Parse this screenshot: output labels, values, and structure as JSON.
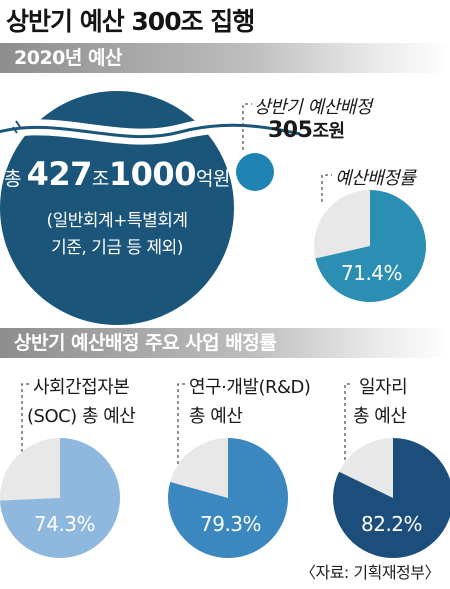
{
  "title": "상반기 예산 300조 집행",
  "section1": {
    "header": "2020년 예산",
    "total": {
      "prefix": "총 ",
      "amount1": "427",
      "unit1": "조",
      "amount2": "1000",
      "unit2": "억원",
      "note_line1": "(일반회계+특별회계",
      "note_line2": "기준, 기금 등 제외)"
    },
    "allocated": {
      "label": "상반기 예산배정",
      "amount": "305",
      "unit": "조원"
    },
    "rate_label": "예산배정률",
    "rate_value": "71.4%"
  },
  "section2": {
    "header": "상반기 예산배정 주요 사업 배정률",
    "pies": [
      {
        "label_line1": "사회간접자본",
        "label_line2": "(SOC) 총 예산",
        "value": "74.3%"
      },
      {
        "label_line1": "연구·개발(R&D)",
        "label_line2": "총 예산",
        "value": "79.3%"
      },
      {
        "label_line1": "일자리",
        "label_line2": "총 예산",
        "value": "82.2%"
      }
    ]
  },
  "source": "〈자료: 기획재정부〉",
  "colors": {
    "big_circle": "#1b567a",
    "small_circle": "#1f84b3",
    "rate_pie": "#2a8fb3",
    "pie_soc": "#8eb8dd",
    "pie_rd": "#3b87bf",
    "pie_jobs": "#1c4e7c",
    "pie_rest": "#e8e8e8"
  },
  "chart_data": [
    {
      "type": "pie",
      "slices": [
        {
          "label": "예산배정률",
          "value": 71.4
        },
        {
          "label": "",
          "value": 28.6
        }
      ]
    },
    {
      "type": "pie",
      "slices": [
        {
          "label": "사회간접자본(SOC) 총 예산",
          "value": 74.3
        },
        {
          "label": "",
          "value": 25.7
        }
      ]
    },
    {
      "type": "pie",
      "slices": [
        {
          "label": "연구·개발(R&D) 총 예산",
          "value": 79.3
        },
        {
          "label": "",
          "value": 20.7
        }
      ]
    },
    {
      "type": "pie",
      "slices": [
        {
          "label": "일자리 총 예산",
          "value": 82.2
        },
        {
          "label": "",
          "value": 17.8
        }
      ]
    }
  ]
}
